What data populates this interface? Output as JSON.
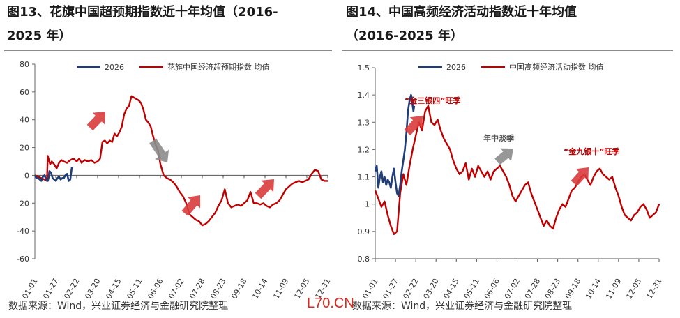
{
  "left_title_line1": "图13、花旗中国超预期指数近十年均值（2016-",
  "left_title_line2": "2025 年）",
  "right_title_line1": "图14、中国高频经济活动指数近十年均值",
  "right_title_line2": "（2016-2025 年）",
  "left_source": "数据来源：Wind，兴业证券经济与金融研究院整理",
  "right_source": "数据来源：Wind，兴业证券经济与金融研究院整理",
  "watermark": "L70.CN",
  "colors": {
    "series_2026": "#1f3d7a",
    "series_avg": "#c00000",
    "arrow": "#d93b3b",
    "arrow_gray": "#8c8c8c"
  },
  "chart_data": [
    {
      "type": "line",
      "ylim": [
        -60,
        80
      ],
      "yticks": [
        "80",
        "60",
        "40",
        "20",
        "0",
        "-20",
        "-40",
        "-60"
      ],
      "xticks": [
        "01-01",
        "01-27",
        "02-22",
        "03-20",
        "04-15",
        "05-11",
        "06-06",
        "07-02",
        "07-28",
        "08-23",
        "09-18",
        "10-14",
        "11-09",
        "12-05",
        "12-31"
      ],
      "series": [
        {
          "name": "2026",
          "x": [
            0,
            2,
            4,
            6,
            8,
            10,
            12,
            14,
            16,
            17,
            18,
            20,
            22,
            24,
            26,
            28,
            30,
            32,
            34,
            36,
            38,
            40,
            42,
            44,
            46
          ],
          "values": [
            0,
            -2,
            -2,
            -3,
            -4,
            -1,
            0,
            -3,
            -4,
            -2,
            3,
            2,
            -2,
            -3,
            -4,
            -2,
            -1,
            -3,
            -2,
            -2,
            0,
            1,
            -4,
            -3,
            6
          ]
        },
        {
          "name": "花旗中国经济超预期指数 均值",
          "x": [
            0,
            4,
            8,
            12,
            15,
            16,
            17,
            19,
            21,
            24,
            27,
            30,
            33,
            36,
            40,
            44,
            48,
            52,
            55,
            58,
            62,
            66,
            70,
            74,
            78,
            81,
            84,
            87,
            90,
            93,
            96,
            99,
            102,
            105,
            108,
            111,
            114,
            117,
            120,
            123,
            126,
            129,
            132,
            135,
            138,
            141,
            144,
            147,
            150,
            153,
            156,
            159,
            160,
            162,
            164,
            168,
            172,
            176,
            180,
            184,
            188,
            192,
            196,
            200,
            204,
            208,
            212,
            216,
            220,
            224,
            228,
            232,
            236,
            240,
            244,
            248,
            252,
            256,
            260,
            264,
            268,
            272,
            276,
            280,
            284,
            288,
            292,
            296,
            300,
            304,
            308,
            312,
            316,
            320,
            324,
            328,
            332,
            336,
            340,
            344,
            348,
            352,
            356,
            360,
            364
          ],
          "values": [
            0,
            -1,
            -2,
            -3,
            -4,
            14,
            12,
            8,
            10,
            8,
            5,
            9,
            11,
            10,
            9,
            11,
            12,
            10,
            12,
            9,
            11,
            10,
            11,
            9,
            10,
            12,
            24,
            25,
            23,
            25,
            24,
            30,
            28,
            31,
            35,
            44,
            48,
            50,
            57,
            56,
            55,
            54,
            52,
            47,
            40,
            38,
            35,
            28,
            22,
            18,
            8,
            2,
            0,
            -1,
            -2,
            -3,
            -5,
            -8,
            -12,
            -15,
            -20,
            -28,
            -30,
            -32,
            -33,
            -36,
            -35,
            -33,
            -30,
            -27,
            -22,
            -18,
            -10,
            -20,
            -23,
            -22,
            -21,
            -22,
            -20,
            -18,
            -12,
            -20,
            -20,
            -21,
            -20,
            -22,
            -23,
            -21,
            -20,
            -18,
            -14,
            -10,
            -8,
            -6,
            -5,
            -4,
            -5,
            -4,
            -3,
            1,
            4,
            3,
            -3,
            -4,
            -4
          ]
        }
      ]
    },
    {
      "type": "line",
      "ylim": [
        0.8,
        1.5
      ],
      "yticks": [
        "1.5",
        "1.4",
        "1.3",
        "1.2",
        "1.1",
        "1",
        "0.9",
        "0.8"
      ],
      "xticks": [
        "01-01",
        "01-27",
        "02-22",
        "03-20",
        "04-15",
        "05-11",
        "06-06",
        "07-02",
        "07-28",
        "08-23",
        "09-18",
        "10-14",
        "11-09",
        "12-05",
        "12-31"
      ],
      "annotations": [
        "“金三银四”旺季",
        "年中淡季",
        "“金九银十”旺季"
      ],
      "series": [
        {
          "name": "2026",
          "x": [
            0,
            2,
            4,
            6,
            8,
            10,
            12,
            14,
            16,
            18,
            20,
            22,
            24,
            26,
            28,
            30,
            32,
            34,
            36,
            38,
            40,
            42,
            44,
            46,
            47,
            48,
            49,
            50
          ],
          "values": [
            1.12,
            1.14,
            1.06,
            1.1,
            1.12,
            1.08,
            1.1,
            1.07,
            1.09,
            1.08,
            1.06,
            1.1,
            1.13,
            1.08,
            1.04,
            1.03,
            1.07,
            1.12,
            1.16,
            1.2,
            1.26,
            1.34,
            1.38,
            1.4,
            1.39,
            1.36,
            1.34,
            1.36
          ]
        },
        {
          "name": "中国高频经济活动指数 均值",
          "x": [
            0,
            4,
            8,
            12,
            16,
            20,
            24,
            28,
            32,
            36,
            40,
            44,
            48,
            52,
            56,
            60,
            64,
            68,
            72,
            76,
            80,
            84,
            88,
            92,
            96,
            100,
            104,
            108,
            112,
            116,
            120,
            124,
            128,
            132,
            136,
            140,
            144,
            148,
            152,
            156,
            160,
            164,
            168,
            172,
            176,
            180,
            184,
            188,
            192,
            196,
            200,
            204,
            208,
            212,
            216,
            220,
            224,
            228,
            232,
            236,
            240,
            244,
            248,
            252,
            256,
            260,
            264,
            268,
            272,
            276,
            280,
            284,
            288,
            292,
            296,
            300,
            304,
            308,
            312,
            316,
            320,
            324,
            328,
            332,
            336,
            340,
            344,
            348,
            352,
            356,
            360,
            364
          ],
          "values": [
            1.05,
            1.02,
            0.99,
            1.01,
            0.96,
            0.92,
            0.89,
            0.9,
            1.04,
            1.11,
            1.07,
            1.14,
            1.2,
            1.25,
            1.3,
            1.27,
            1.34,
            1.36,
            1.3,
            1.29,
            1.31,
            1.27,
            1.24,
            1.22,
            1.2,
            1.16,
            1.13,
            1.11,
            1.12,
            1.15,
            1.09,
            1.13,
            1.1,
            1.14,
            1.12,
            1.1,
            1.12,
            1.09,
            1.12,
            1.13,
            1.14,
            1.12,
            1.1,
            1.07,
            1.03,
            1.01,
            1.03,
            1.05,
            1.07,
            1.08,
            1.04,
            1.01,
            0.98,
            0.95,
            0.92,
            0.94,
            0.92,
            0.91,
            0.95,
            0.98,
            1.0,
            0.99,
            1.02,
            1.05,
            1.06,
            1.08,
            1.1,
            1.11,
            1.09,
            1.07,
            1.1,
            1.12,
            1.13,
            1.11,
            1.1,
            1.09,
            1.1,
            1.06,
            1.03,
            0.99,
            0.96,
            0.95,
            0.94,
            0.96,
            0.97,
            0.99,
            1.0,
            0.98,
            0.95,
            0.96,
            0.97,
            1.0
          ]
        }
      ]
    }
  ]
}
